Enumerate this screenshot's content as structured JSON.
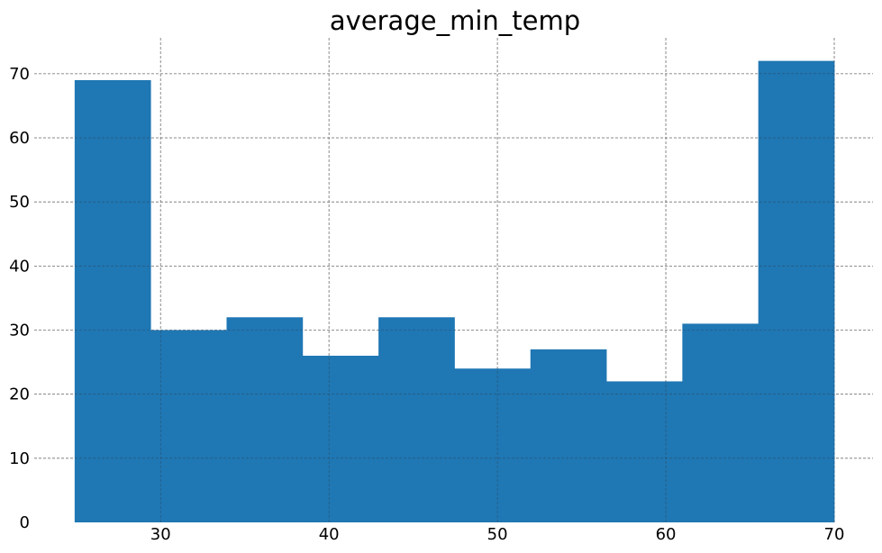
{
  "chart_data": {
    "type": "bar",
    "subtype": "histogram",
    "title": "average_min_temp",
    "xlabel": "",
    "ylabel": "",
    "bin_edges": [
      24.9,
      29.41,
      33.92,
      38.43,
      42.94,
      47.45,
      51.96,
      56.47,
      60.98,
      65.49,
      70.0
    ],
    "values": [
      69,
      30,
      32,
      26,
      32,
      24,
      27,
      22,
      31,
      72
    ],
    "xlim": [
      22.5,
      72.3
    ],
    "ylim": [
      0,
      75.6
    ],
    "xticks": [
      30,
      40,
      50,
      60,
      70
    ],
    "yticks": [
      0,
      10,
      20,
      30,
      40,
      50,
      60,
      70
    ],
    "grid": true,
    "bar_color": "#1f77b4",
    "grid_color": "#9e9e9e"
  }
}
